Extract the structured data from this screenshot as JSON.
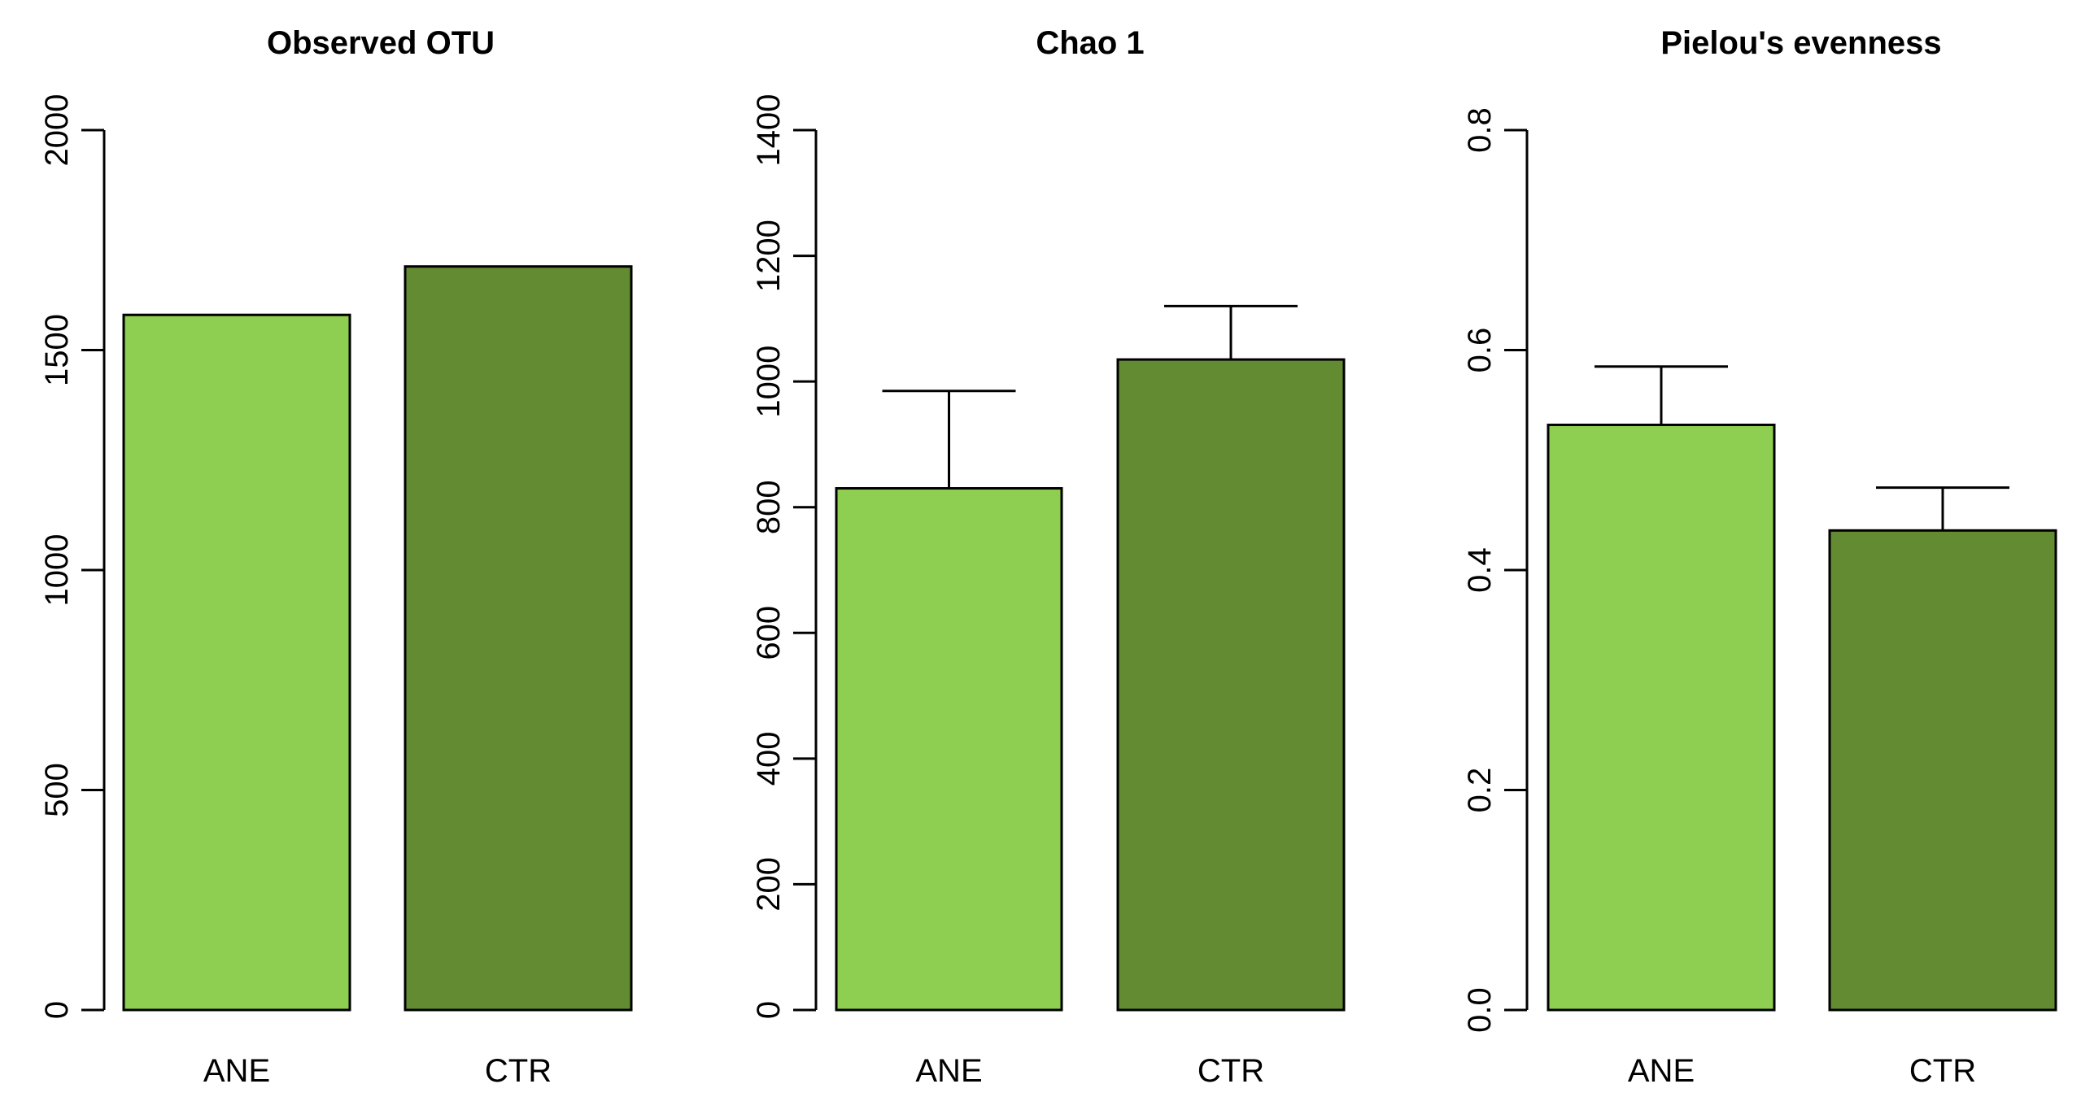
{
  "chart_data": [
    {
      "type": "bar",
      "title": "Observed OTU",
      "xlabel": "",
      "ylabel": "",
      "categories": [
        "ANE",
        "CTR"
      ],
      "values": [
        1580,
        1690
      ],
      "errors": [
        null,
        null
      ],
      "ylim": [
        0,
        2000
      ],
      "yticks": [
        "0",
        "500",
        "1000",
        "1500",
        "2000"
      ],
      "ytick_values": [
        0,
        500,
        1000,
        1500,
        2000
      ],
      "colors": [
        "#8ece50",
        "#628b32"
      ]
    },
    {
      "type": "bar",
      "title": "Chao 1",
      "xlabel": "",
      "ylabel": "",
      "categories": [
        "ANE",
        "CTR"
      ],
      "values": [
        830,
        1035
      ],
      "errors": [
        985,
        1120
      ],
      "ylim": [
        0,
        1400
      ],
      "yticks": [
        "0",
        "200",
        "400",
        "600",
        "800",
        "1000",
        "1200",
        "1400"
      ],
      "ytick_values": [
        0,
        200,
        400,
        600,
        800,
        1000,
        1200,
        1400
      ],
      "colors": [
        "#8ece50",
        "#628b32"
      ]
    },
    {
      "type": "bar",
      "title": "Pielou's evenness",
      "xlabel": "",
      "ylabel": "",
      "categories": [
        "ANE",
        "CTR"
      ],
      "values": [
        0.532,
        0.436
      ],
      "errors": [
        0.585,
        0.475
      ],
      "ylim": [
        0,
        0.8
      ],
      "yticks": [
        "0.0",
        "0.2",
        "0.4",
        "0.6",
        "0.8"
      ],
      "ytick_values": [
        0,
        0.2,
        0.4,
        0.6,
        0.8
      ],
      "colors": [
        "#8ece50",
        "#628b32"
      ]
    }
  ]
}
